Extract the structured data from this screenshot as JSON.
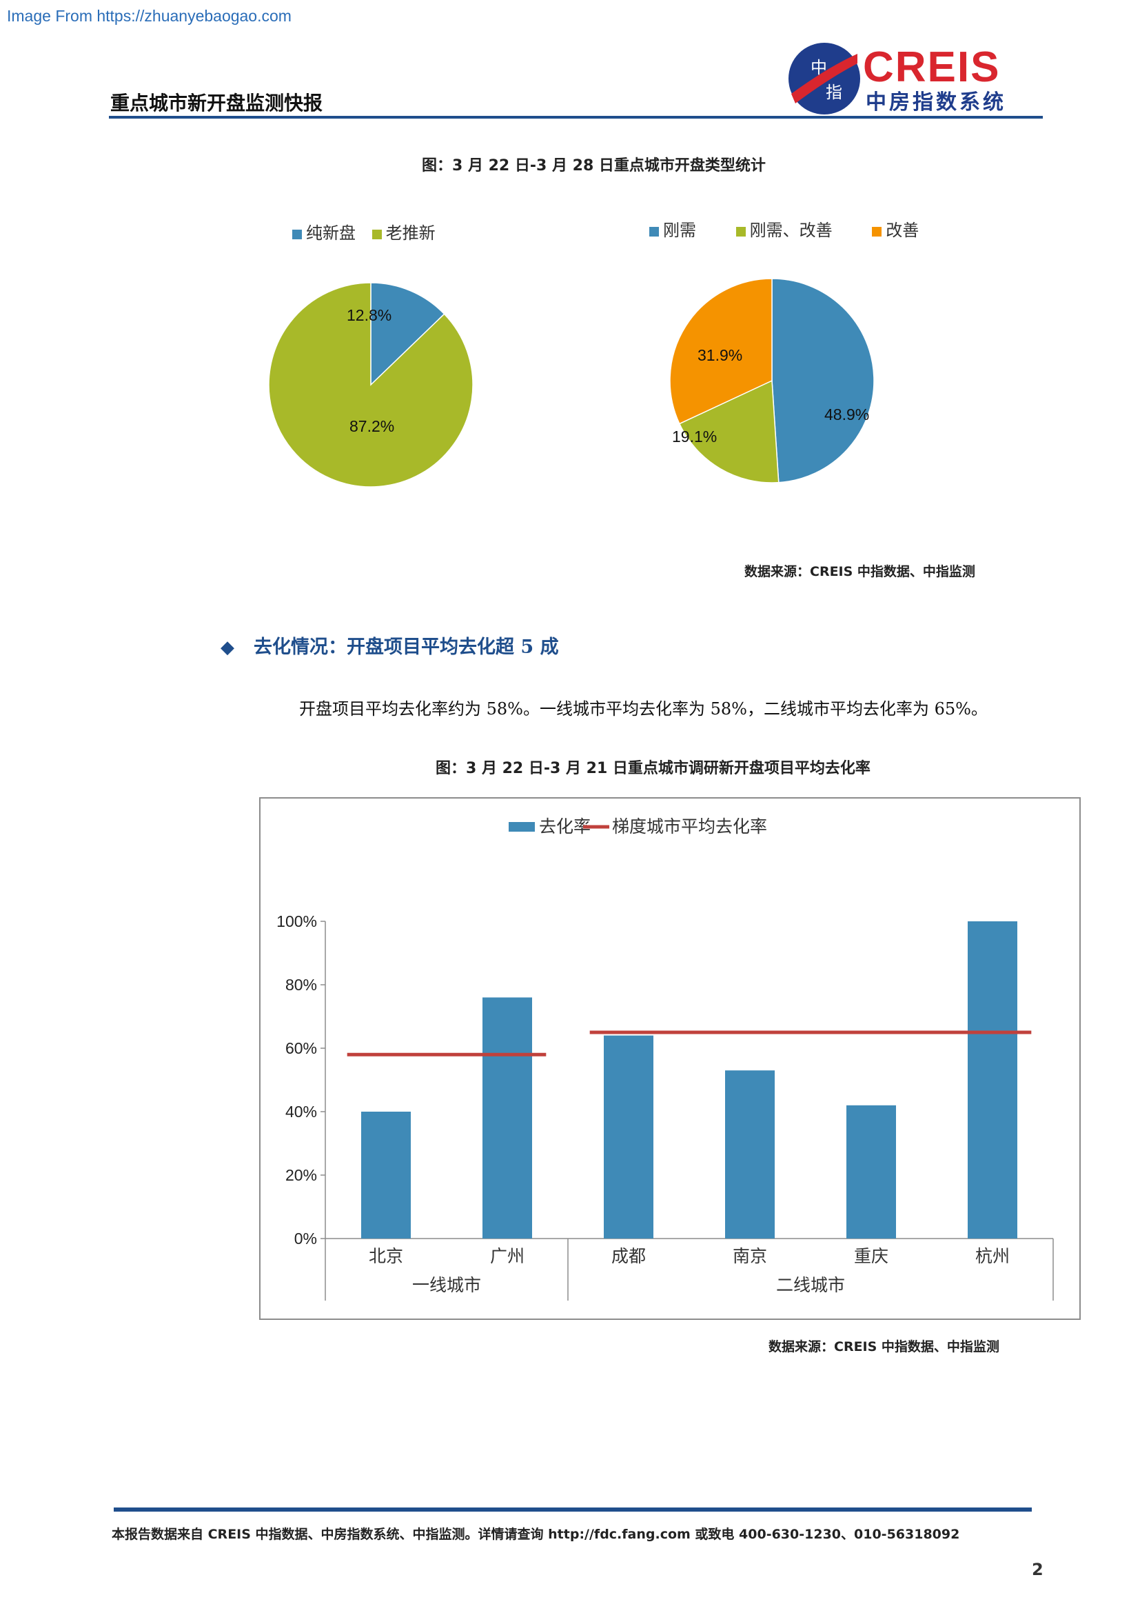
{
  "watermark": "Image From https://zhuanyebaogao.com",
  "header": {
    "title": "重点城市新开盘监测快报",
    "logo_text": "CREIS",
    "logo_subtext": "中房指数系统",
    "logo_badge_1": "中",
    "logo_badge_2": "指",
    "colors": {
      "rule": "#1f4e8c",
      "logo_red": "#d9262e",
      "logo_blue": "#1f3d8c"
    }
  },
  "figure1": {
    "title": "图：3 月 22 日-3 月 28 日重点城市开盘类型统计",
    "source": "数据来源：CREIS 中指数据、中指监测"
  },
  "section": {
    "heading": "去化情况：开盘项目平均去化超 5 成",
    "body": "开盘项目平均去化率约为 58%。一线城市平均去化率为 58%，二线城市平均去化率为 65%。"
  },
  "figure2": {
    "title": "图：3 月 22 日-3 月 21 日重点城市调研新开盘项目平均去化率",
    "source": "数据来源：CREIS 中指数据、中指监测"
  },
  "chart_data": [
    {
      "type": "pie",
      "legend": [
        "纯新盘",
        "老推新"
      ],
      "legend_position": "top",
      "slices": [
        {
          "label": "纯新盘",
          "value": 12.8,
          "display": "12.8%",
          "color": "#3f8ab7"
        },
        {
          "label": "老推新",
          "value": 87.2,
          "display": "87.2%",
          "color": "#a8b929"
        }
      ]
    },
    {
      "type": "pie",
      "legend": [
        "刚需",
        "刚需、改善",
        "改善"
      ],
      "legend_position": "top",
      "slices": [
        {
          "label": "刚需",
          "value": 48.9,
          "display": "48.9%",
          "color": "#3f8ab7"
        },
        {
          "label": "刚需、改善",
          "value": 19.1,
          "display": "19.1%",
          "color": "#a8b929"
        },
        {
          "label": "改善",
          "value": 31.9,
          "display": "31.9%",
          "color": "#f59300"
        }
      ]
    },
    {
      "type": "bar",
      "legend": [
        "去化率",
        "梯度城市平均去化率"
      ],
      "legend_position": "top",
      "categories": [
        "北京",
        "广州",
        "成都",
        "南京",
        "重庆",
        "杭州"
      ],
      "groups": [
        {
          "label": "一线城市",
          "categories": [
            "北京",
            "广州"
          ],
          "average": 58
        },
        {
          "label": "二线城市",
          "categories": [
            "成都",
            "南京",
            "重庆",
            "杭州"
          ],
          "average": 65
        }
      ],
      "series": [
        {
          "name": "去化率",
          "values": [
            40,
            76,
            64,
            53,
            42,
            100
          ],
          "color": "#3f8ab7"
        }
      ],
      "average_line_color": "#c0413c",
      "yticks": [
        "0%",
        "20%",
        "40%",
        "60%",
        "80%",
        "100%"
      ],
      "ylim": [
        0,
        100
      ],
      "grid": false
    }
  ],
  "footer": {
    "text": "本报告数据来自 CREIS 中指数据、中房指数系统、中指监测。详情请查询 http://fdc.fang.com 或致电 400-630-1230、010-56318092",
    "page_number": "2"
  }
}
